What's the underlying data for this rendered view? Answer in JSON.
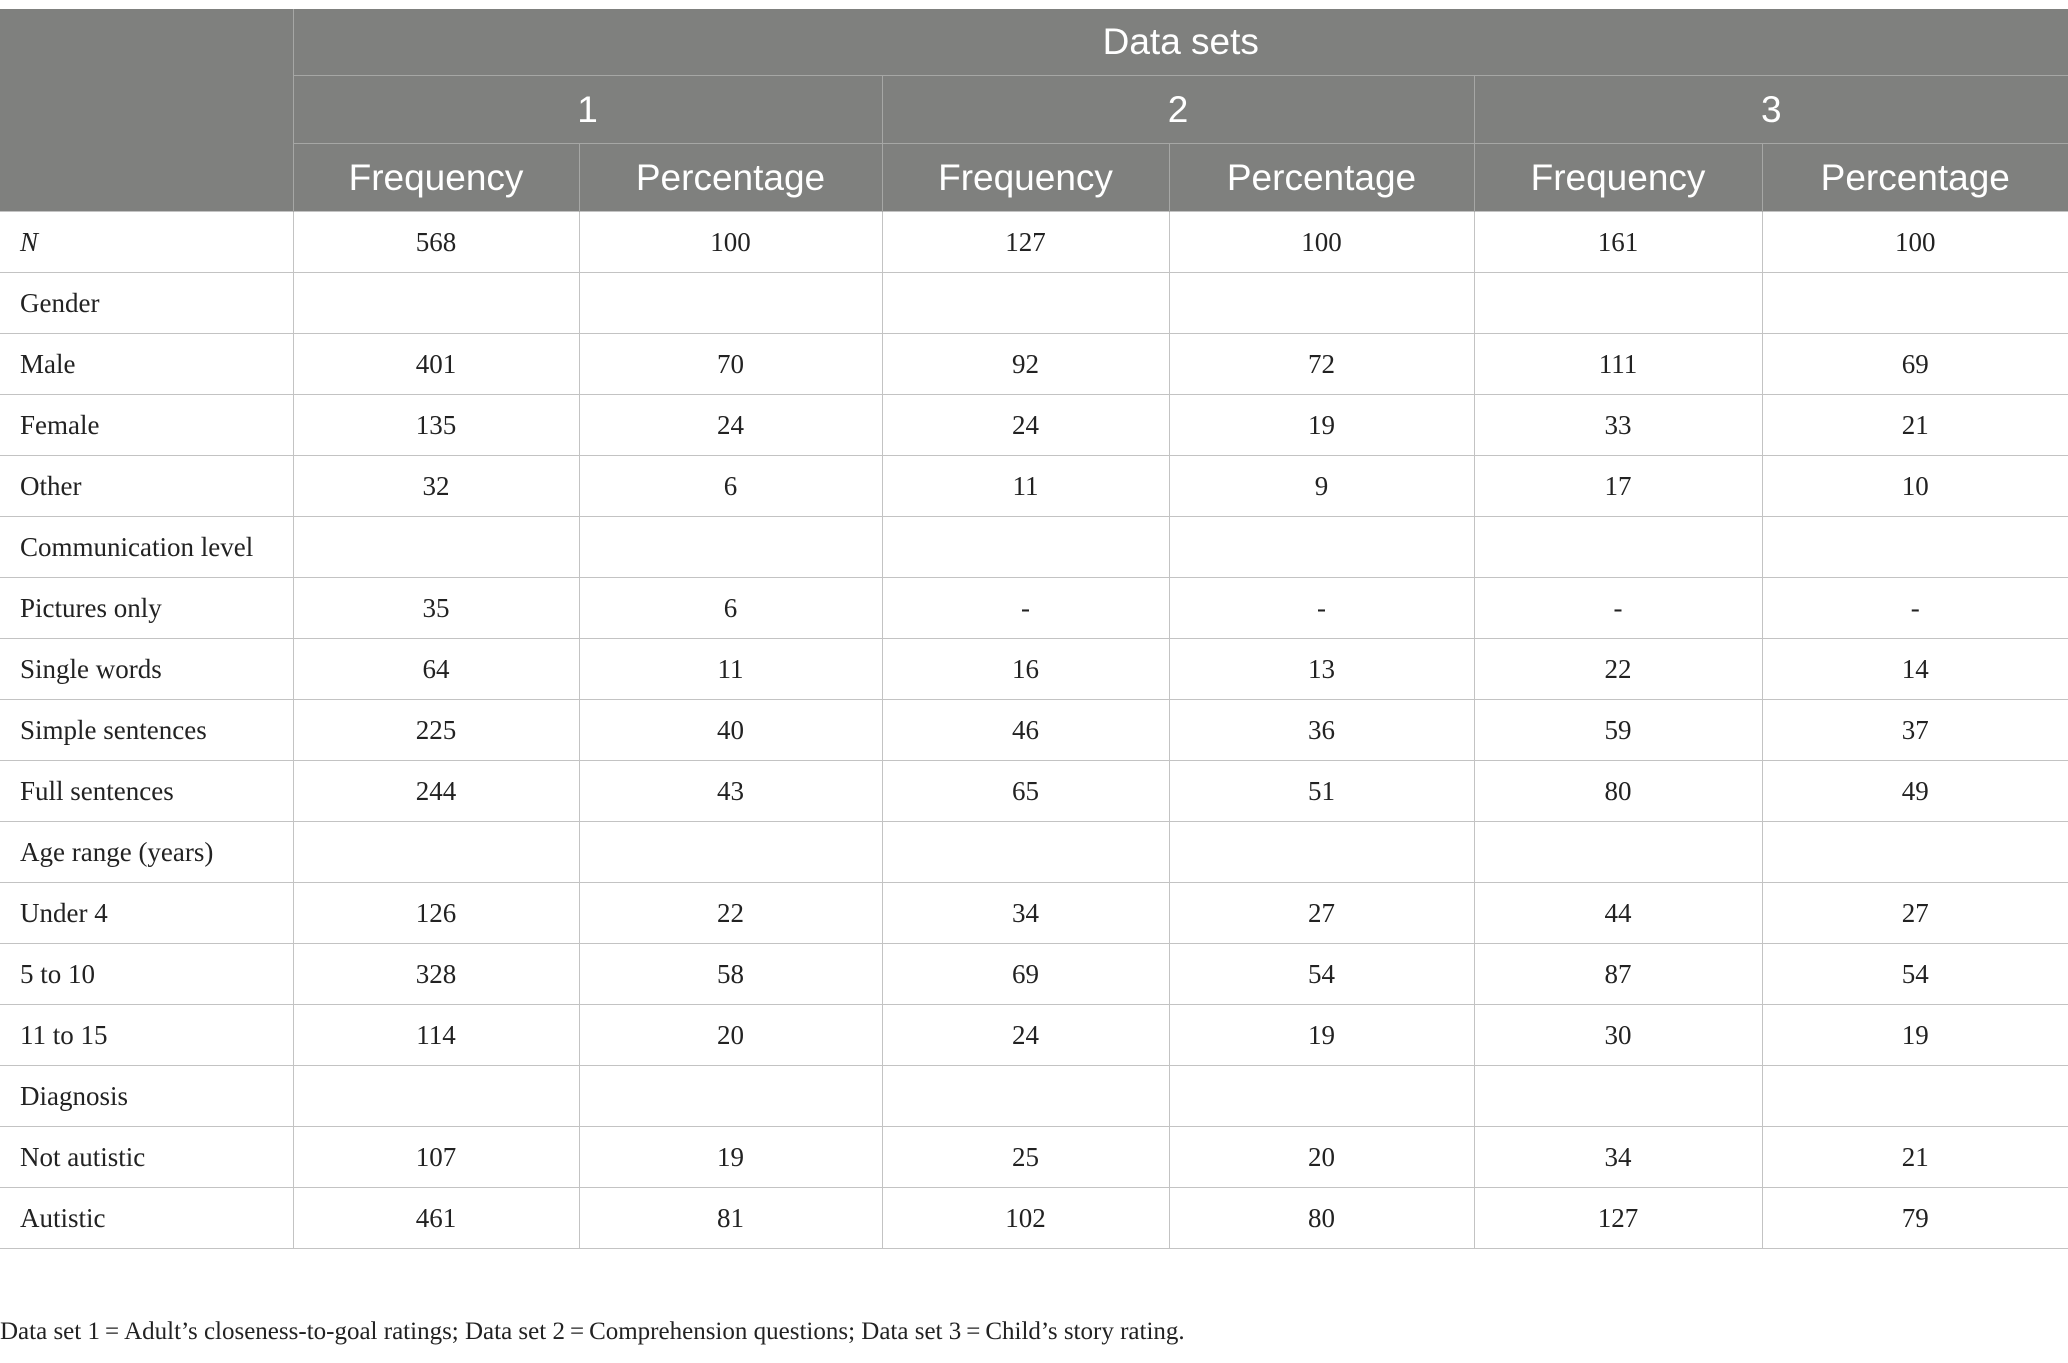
{
  "header": {
    "group_title": "Data sets",
    "sets": [
      "1",
      "2",
      "3"
    ],
    "subcolumns": [
      "Frequency",
      "Percentage",
      "Frequency",
      "Percentage",
      "Frequency",
      "Percentage"
    ]
  },
  "rows": [
    {
      "label": "N",
      "cells": [
        "568",
        "100",
        "127",
        "100",
        "161",
        "100"
      ]
    },
    {
      "label": "Gender",
      "cells": [
        "",
        "",
        "",
        "",
        "",
        ""
      ]
    },
    {
      "label": "Male",
      "cells": [
        "401",
        "70",
        "92",
        "72",
        "111",
        "69"
      ]
    },
    {
      "label": "Female",
      "cells": [
        "135",
        "24",
        "24",
        "19",
        "33",
        "21"
      ]
    },
    {
      "label": "Other",
      "cells": [
        "32",
        "6",
        "11",
        "9",
        "17",
        "10"
      ]
    },
    {
      "label": "Communication level",
      "cells": [
        "",
        "",
        "",
        "",
        "",
        ""
      ]
    },
    {
      "label": "Pictures only",
      "cells": [
        "35",
        "6",
        "-",
        "-",
        "-",
        "-"
      ]
    },
    {
      "label": "Single words",
      "cells": [
        "64",
        "11",
        "16",
        "13",
        "22",
        "14"
      ]
    },
    {
      "label": "Simple sentences",
      "cells": [
        "225",
        "40",
        "46",
        "36",
        "59",
        "37"
      ]
    },
    {
      "label": "Full sentences",
      "cells": [
        "244",
        "43",
        "65",
        "51",
        "80",
        "49"
      ]
    },
    {
      "label": "Age range (years)",
      "cells": [
        "",
        "",
        "",
        "",
        "",
        ""
      ]
    },
    {
      "label": "Under 4",
      "cells": [
        "126",
        "22",
        "34",
        "27",
        "44",
        "27"
      ]
    },
    {
      "label": "5 to 10",
      "cells": [
        "328",
        "58",
        "69",
        "54",
        "87",
        "54"
      ]
    },
    {
      "label": "11 to 15",
      "cells": [
        "114",
        "20",
        "24",
        "19",
        "30",
        "19"
      ]
    },
    {
      "label": "Diagnosis",
      "cells": [
        "",
        "",
        "",
        "",
        "",
        ""
      ]
    },
    {
      "label": "Not autistic",
      "cells": [
        "107",
        "19",
        "25",
        "20",
        "34",
        "21"
      ]
    },
    {
      "label": "Autistic",
      "cells": [
        "461",
        "81",
        "102",
        "80",
        "127",
        "79"
      ]
    }
  ],
  "footnote": "Data set 1 = Adult’s closeness-to-goal ratings; Data set 2 = Comprehension questions; Data set 3 = Child’s story rating.",
  "colors": {
    "header_bg": "#7f807e",
    "header_text": "#ffffff",
    "grid_line": "#c3c3c3"
  }
}
